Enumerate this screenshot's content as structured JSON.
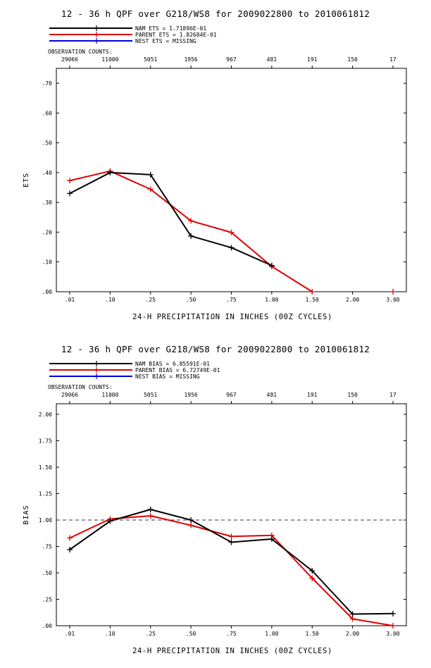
{
  "chart_data": [
    {
      "type": "line",
      "title": "12 - 36 h QPF over G218/WS8 for 2009022800 to 2010061812",
      "xlabel": "24-H PRECIPITATION IN INCHES (00Z CYCLES)",
      "ylabel": "ETS",
      "obs_label": "OBSERVATION COUNTS:",
      "categories": [
        ".01",
        ".10",
        ".25",
        ".50",
        ".75",
        "1.00",
        "1.50",
        "2.00",
        "3.00"
      ],
      "obs_counts": [
        "29066",
        "11000",
        "5051",
        "1956",
        "967",
        "481",
        "191",
        "150",
        "17"
      ],
      "ylim": [
        0,
        0.75
      ],
      "yticks": [
        ".00",
        ".10",
        ".20",
        ".30",
        ".40",
        ".50",
        ".60",
        ".70"
      ],
      "ytick_values": [
        0,
        0.1,
        0.2,
        0.3,
        0.4,
        0.5,
        0.6,
        0.7
      ],
      "reference_line": null,
      "series": [
        {
          "name": "NAM",
          "legend": "NAM ETS =  1.71896E-01",
          "color": "#000000",
          "values": [
            0.33,
            0.4,
            0.393,
            0.187,
            0.148,
            0.088,
            null,
            null,
            null
          ]
        },
        {
          "name": "PARENT",
          "legend": "PARENT ETS =  1.82684E-01",
          "color": "#e00000",
          "values": [
            0.373,
            0.405,
            0.344,
            0.238,
            0.199,
            0.085,
            0.0,
            null,
            0.0
          ]
        },
        {
          "name": "NEST",
          "legend": "NEST ETS = MISSING",
          "color": "#0000e0",
          "values": [
            null,
            null,
            null,
            null,
            null,
            null,
            null,
            null,
            null
          ]
        }
      ]
    },
    {
      "type": "line",
      "title": "12 - 36 h QPF over G218/WS8 for 2009022800 to 2010061812",
      "xlabel": "24-H PRECIPITATION IN INCHES (00Z CYCLES)",
      "ylabel": "BIAS",
      "obs_label": "OBSERVATION COUNTS:",
      "categories": [
        ".01",
        ".10",
        ".25",
        ".50",
        ".75",
        "1.00",
        "1.50",
        "2.00",
        "3.00"
      ],
      "obs_counts": [
        "29066",
        "11000",
        "5051",
        "1956",
        "967",
        "481",
        "191",
        "150",
        "17"
      ],
      "ylim": [
        0,
        2.1
      ],
      "yticks": [
        ".00",
        ".25",
        ".50",
        ".75",
        "1.00",
        "1.25",
        "1.50",
        "1.75",
        "2.00"
      ],
      "ytick_values": [
        0,
        0.25,
        0.5,
        0.75,
        1.0,
        1.25,
        1.5,
        1.75,
        2.0
      ],
      "reference_line": 1.0,
      "series": [
        {
          "name": "NAM",
          "legend": "NAM BIAS =  6.85591E-01",
          "color": "#000000",
          "values": [
            0.72,
            0.99,
            1.1,
            1.0,
            0.79,
            0.82,
            0.52,
            0.11,
            0.115
          ]
        },
        {
          "name": "PARENT",
          "legend": "PARENT BIAS =  6.72749E-01",
          "color": "#e00000",
          "values": [
            0.83,
            1.01,
            1.04,
            0.95,
            0.845,
            0.855,
            0.45,
            0.065,
            0.0
          ]
        },
        {
          "name": "NEST",
          "legend": "NEST BIAS = MISSING",
          "color": "#0000e0",
          "values": [
            null,
            null,
            null,
            null,
            null,
            null,
            null,
            null,
            null
          ]
        }
      ]
    }
  ]
}
